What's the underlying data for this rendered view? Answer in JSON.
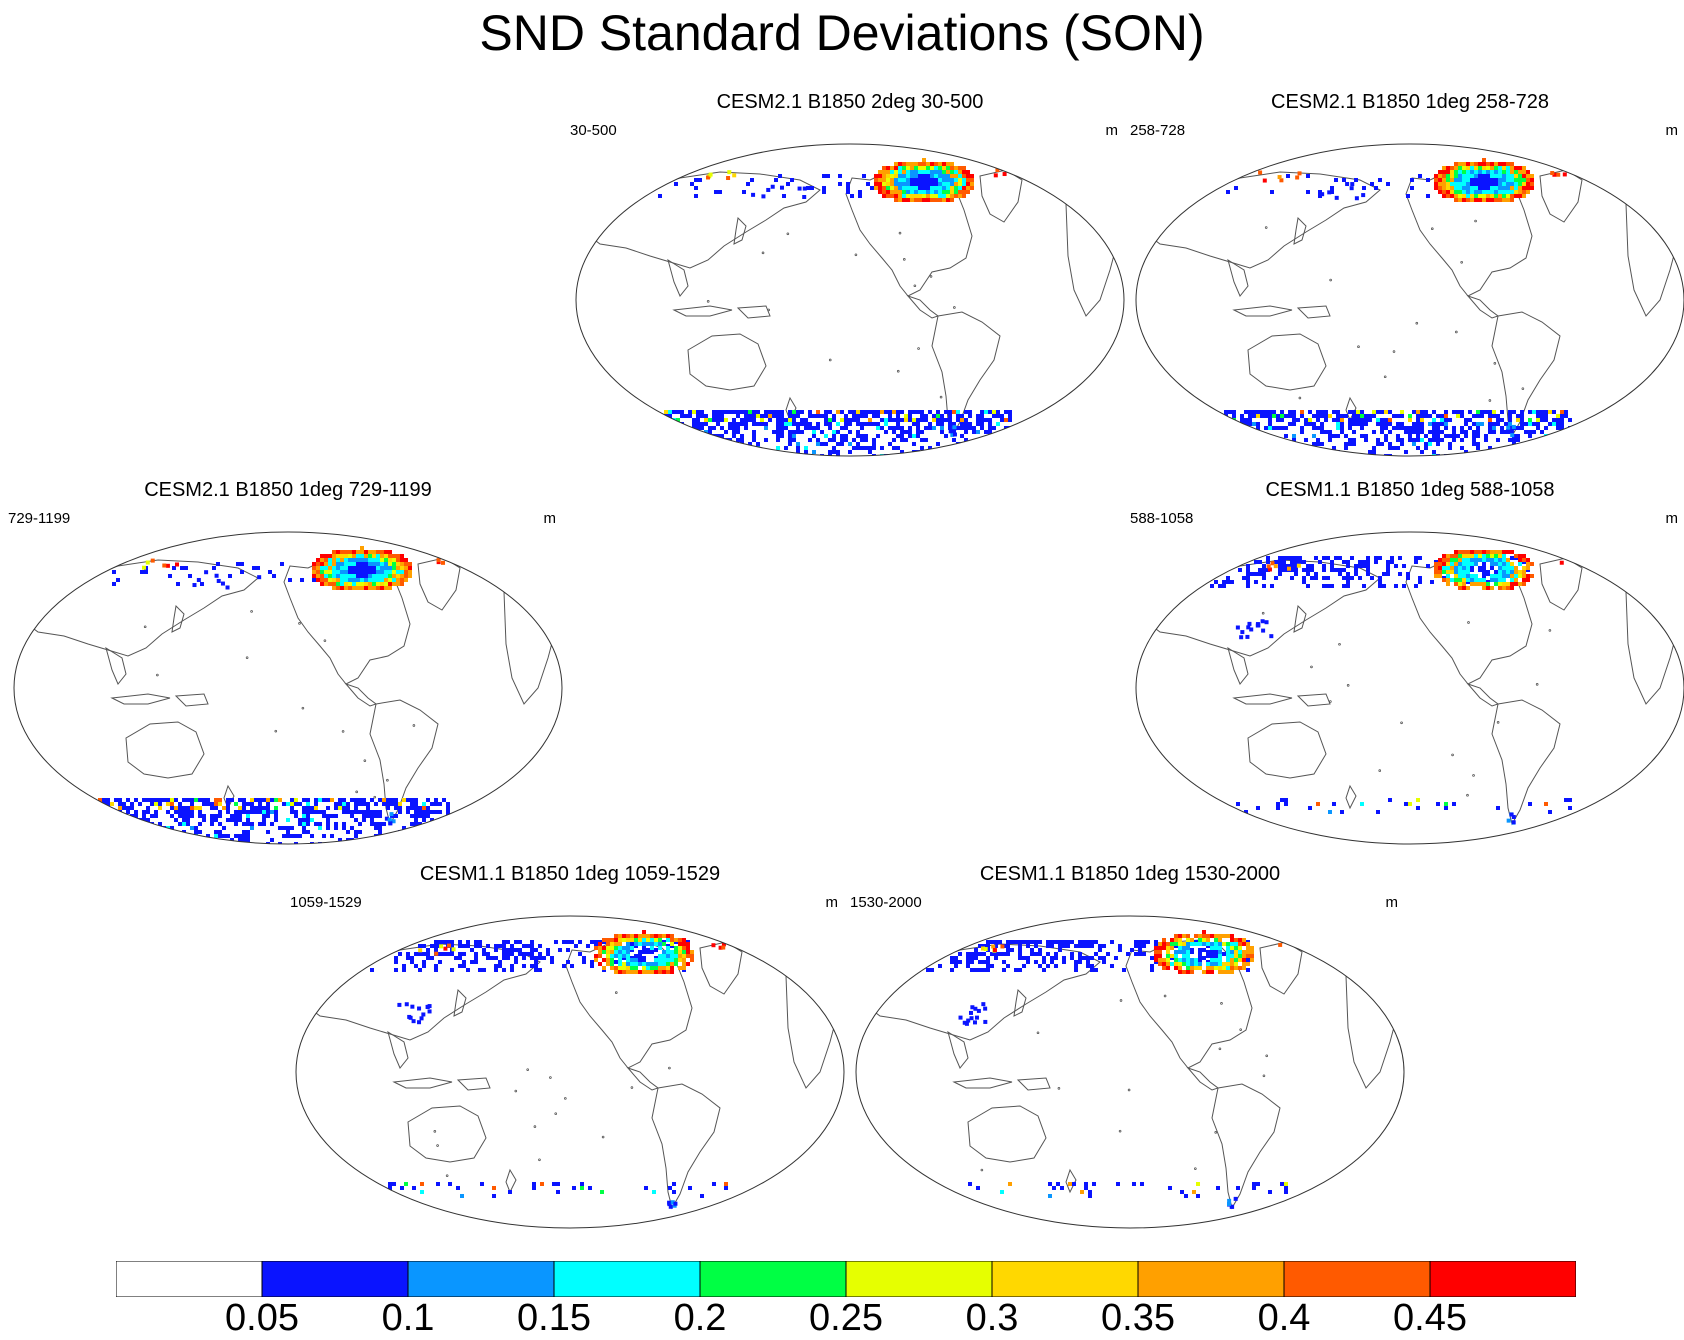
{
  "title": "SND Standard Deviations (SON)",
  "units": "m",
  "panels": [
    {
      "id": "p1",
      "title": "CESM2.1 B1850 2deg 30-500",
      "period": "30-500",
      "nh_snow": "high"
    },
    {
      "id": "p2",
      "title": "CESM2.1 B1850 1deg 258-728",
      "period": "258-728",
      "nh_snow": "high"
    },
    {
      "id": "p3",
      "title": "CESM2.1 B1850 1deg 729-1199",
      "period": "729-1199",
      "nh_snow": "high"
    },
    {
      "id": "p4",
      "title": "CESM1.1 B1850 1deg 588-1058",
      "period": "588-1058",
      "nh_snow": "broad"
    },
    {
      "id": "p5",
      "title": "CESM1.1 B1850 1deg 1059-1529",
      "period": "1059-1529",
      "nh_snow": "broad"
    },
    {
      "id": "p6",
      "title": "CESM1.1 B1850 1deg 1530-2000",
      "period": "1530-2000",
      "nh_snow": "broad"
    }
  ],
  "colorbar": {
    "labels": [
      "0.05",
      "0.1",
      "0.15",
      "0.2",
      "0.25",
      "0.3",
      "0.35",
      "0.4",
      "0.45"
    ],
    "colors": [
      "#ffffff",
      "#0a14ff",
      "#0a96ff",
      "#00ffff",
      "#00ff44",
      "#e6ff00",
      "#ffd800",
      "#ffa000",
      "#ff5a00",
      "#ff0000"
    ]
  }
}
